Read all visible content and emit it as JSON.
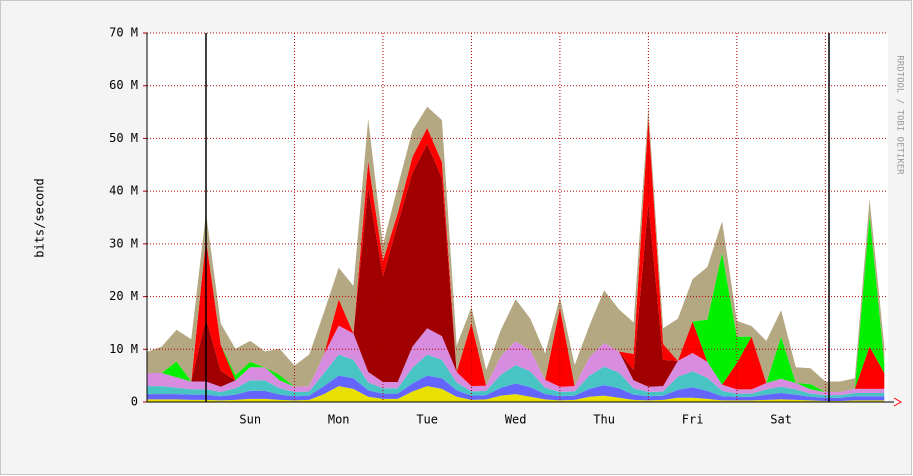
{
  "chart_data": {
    "type": "stacked-area",
    "y_label": "bits/second",
    "watermark": "RRDTOOL / TOBI OETIKER",
    "x": [
      0,
      4,
      8,
      12,
      16,
      20,
      24,
      28,
      32,
      36,
      40,
      44,
      48,
      52,
      56,
      60,
      64,
      68,
      72,
      76,
      80,
      84,
      88,
      92,
      96,
      100,
      104,
      108,
      112,
      116,
      120,
      124,
      128,
      132,
      136,
      140,
      144,
      148,
      152,
      156,
      160,
      164,
      168,
      172,
      176,
      180,
      184,
      188,
      192,
      196,
      200
    ],
    "xlim": [
      0,
      201
    ],
    "xticks": [
      {
        "value": 28,
        "label": "Sun"
      },
      {
        "value": 52,
        "label": "Mon"
      },
      {
        "value": 76,
        "label": "Tue"
      },
      {
        "value": 100,
        "label": "Wed"
      },
      {
        "value": 124,
        "label": "Thu"
      },
      {
        "value": 148,
        "label": "Fri"
      },
      {
        "value": 172,
        "label": "Sat"
      }
    ],
    "xgrid": [
      16,
      40,
      64,
      88,
      112,
      136,
      160,
      184
    ],
    "week_lines": [
      16,
      185
    ],
    "ylim": [
      0,
      70
    ],
    "yticks": [
      0,
      {
        "value": 10,
        "label": "10 M"
      },
      {
        "value": 20,
        "label": "20 M"
      },
      {
        "value": 30,
        "label": "30 M"
      },
      {
        "value": 40,
        "label": "40 M"
      },
      {
        "value": 50,
        "label": "50 M"
      },
      {
        "value": 60,
        "label": "60 M"
      },
      {
        "value": 70,
        "label": "70 M"
      }
    ],
    "grid": true,
    "series": [
      {
        "color": "#e8e000",
        "values": [
          0.5,
          0.5,
          0.5,
          0.4,
          0.4,
          0.3,
          0.4,
          0.6,
          0.6,
          0.4,
          0.3,
          0.4,
          1.5,
          3,
          2.5,
          1,
          0.6,
          0.6,
          2,
          3,
          2.5,
          1,
          0.4,
          0.5,
          1.2,
          1.5,
          1,
          0.5,
          0.3,
          0.4,
          1,
          1.2,
          0.8,
          0.4,
          0.3,
          0.4,
          0.8,
          0.8,
          0.6,
          0.3,
          0.3,
          0.3,
          0.4,
          0.5,
          0.4,
          0.3,
          0.2,
          0.2,
          0.3,
          0.3,
          0.3
        ]
      },
      {
        "color": "#6464ff",
        "values": [
          1,
          1,
          1,
          1,
          1,
          0.8,
          1,
          1.5,
          1.5,
          1,
          0.8,
          0.8,
          1.5,
          2,
          2,
          1.2,
          1,
          1,
          1.5,
          2,
          2,
          1.2,
          0.8,
          0.8,
          1.5,
          2,
          1.8,
          1,
          0.8,
          0.8,
          1.5,
          2,
          1.8,
          1,
          0.8,
          0.8,
          1.5,
          2,
          1.5,
          0.8,
          0.7,
          0.7,
          1,
          1.2,
          1,
          0.7,
          0.6,
          0.6,
          0.8,
          0.8,
          0.8
        ]
      },
      {
        "color": "#48c4c4",
        "values": [
          1.5,
          1.5,
          1.2,
          1,
          1,
          0.8,
          1.2,
          2,
          2,
          1.2,
          0.8,
          0.8,
          2.5,
          4,
          3.5,
          1.5,
          1,
          1,
          3,
          4,
          3.5,
          1.5,
          0.8,
          0.8,
          2.5,
          3.5,
          3,
          1.2,
          0.8,
          0.8,
          2.5,
          3.5,
          3,
          1.2,
          0.8,
          0.8,
          2.5,
          3,
          2.5,
          1,
          0.6,
          0.6,
          1,
          1.2,
          1,
          0.6,
          0.5,
          0.5,
          0.6,
          0.6,
          0.6
        ]
      },
      {
        "color": "#d88ce0",
        "values": [
          2.5,
          2.5,
          2,
          1.5,
          1.5,
          1,
          1.5,
          2.5,
          2.5,
          1.5,
          1,
          1,
          3.5,
          5.5,
          5,
          2,
          1.2,
          1.2,
          4,
          5,
          4.5,
          2,
          1,
          1,
          3.5,
          4.5,
          4,
          1.5,
          1,
          1,
          3.5,
          4.5,
          4,
          1.5,
          1,
          1,
          3,
          3.5,
          3,
          1.2,
          0.8,
          0.8,
          1.2,
          1.5,
          1.2,
          0.8,
          0.6,
          0.6,
          0.8,
          0.8,
          0.8
        ]
      },
      {
        "color": "#a00000",
        "values": [
          0,
          0,
          0,
          0,
          12,
          3,
          0,
          0,
          0,
          0,
          0,
          0,
          0,
          0,
          0,
          35,
          20,
          30,
          33,
          35,
          30,
          0,
          0,
          0,
          0,
          0,
          0,
          0,
          0,
          0,
          0,
          0,
          0,
          2,
          35,
          5,
          0,
          0,
          0,
          0,
          0,
          0,
          0,
          0,
          0,
          0,
          0,
          0,
          0,
          0,
          0
        ]
      },
      {
        "color": "#ff0000",
        "values": [
          0,
          0,
          0,
          0,
          15,
          5,
          0,
          0,
          0,
          0,
          0,
          0,
          0,
          5,
          0,
          5,
          3,
          2,
          3,
          3,
          3,
          0,
          12,
          0,
          0,
          0,
          0,
          0,
          15,
          0,
          0,
          0,
          0,
          3,
          16,
          3,
          0,
          6,
          0,
          0,
          5,
          10,
          0,
          0,
          0,
          0,
          0,
          0,
          0,
          8,
          3
        ]
      },
      {
        "color": "#00f000",
        "values": [
          0,
          0,
          3,
          0,
          0,
          0,
          1,
          1,
          0,
          1,
          0,
          0,
          0,
          0,
          0,
          0,
          0,
          0,
          0,
          0,
          0,
          0,
          0,
          0,
          0,
          0,
          0,
          0,
          0,
          0,
          0,
          0,
          0,
          0,
          0,
          0,
          0,
          0,
          8,
          25,
          5,
          0,
          0,
          8,
          0,
          1,
          0,
          0,
          0,
          25,
          2
        ]
      },
      {
        "color": "#b4a882",
        "values": [
          4,
          5,
          6,
          8,
          5,
          4,
          5,
          4,
          3,
          5,
          4,
          6,
          8,
          6,
          9,
          8,
          3,
          5,
          5,
          4,
          8,
          5,
          3,
          3,
          5,
          8,
          6,
          5,
          2,
          4,
          6,
          10,
          8,
          6,
          2,
          3,
          8,
          8,
          10,
          6,
          3,
          2,
          8,
          5,
          3,
          3,
          2,
          2,
          2,
          3,
          3
        ]
      }
    ]
  }
}
